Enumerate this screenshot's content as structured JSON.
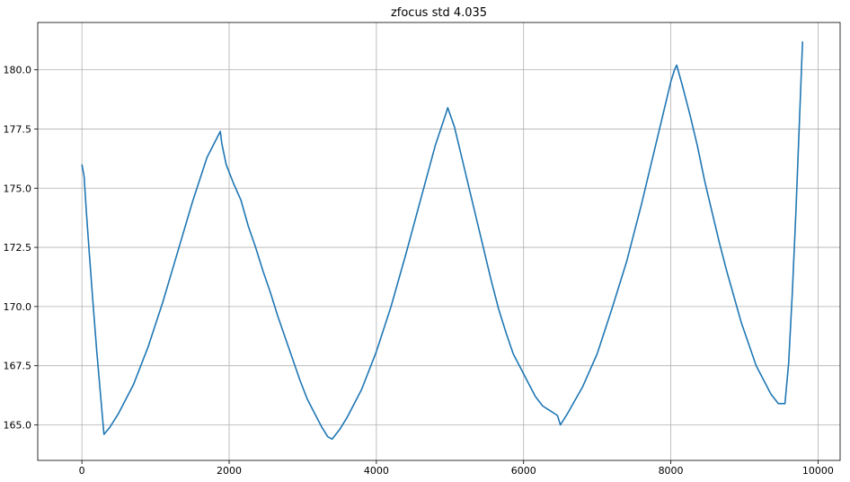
{
  "colors": {
    "background": "#ffffff",
    "axes": "#000000",
    "grid": "#b0b0b0",
    "series": "#1f77b4"
  },
  "chart_data": {
    "type": "line",
    "title": "zfocus std 4.035",
    "xlabel": "",
    "ylabel": "",
    "xlim": [
      -600,
      10300
    ],
    "ylim": [
      163.5,
      182.0
    ],
    "grid": true,
    "x_ticks": [
      0,
      2000,
      4000,
      6000,
      8000,
      10000
    ],
    "x_tick_labels": [
      "0",
      "2000",
      "4000",
      "6000",
      "8000",
      "10000"
    ],
    "y_ticks": [
      165.0,
      167.5,
      170.0,
      172.5,
      175.0,
      177.5,
      180.0
    ],
    "y_tick_labels": [
      "165.0",
      "167.5",
      "170.0",
      "172.5",
      "175.0",
      "177.5",
      "180.0"
    ],
    "series": [
      {
        "color": "#1f77b4",
        "x": [
          0,
          30,
          60,
          100,
          150,
          200,
          250,
          300,
          380,
          500,
          700,
          900,
          1100,
          1300,
          1500,
          1700,
          1880,
          1900,
          1960,
          2060,
          2160,
          2260,
          2360,
          2460,
          2560,
          2660,
          2760,
          2860,
          2960,
          3060,
          3160,
          3260,
          3340,
          3400,
          3500,
          3600,
          3800,
          4000,
          4200,
          4400,
          4600,
          4800,
          4950,
          4970,
          5060,
          5160,
          5260,
          5360,
          5460,
          5560,
          5660,
          5760,
          5860,
          5960,
          6060,
          6160,
          6260,
          6360,
          6460,
          6500,
          6600,
          6800,
          7000,
          7200,
          7400,
          7600,
          7800,
          8000,
          8050,
          8080,
          8160,
          8260,
          8360,
          8460,
          8560,
          8660,
          8760,
          8860,
          8960,
          9060,
          9160,
          9260,
          9360,
          9460,
          9550,
          9600,
          9650,
          9700,
          9750,
          9790
        ],
        "y": [
          176.0,
          175.5,
          174.0,
          172.3,
          170.2,
          168.2,
          166.4,
          164.6,
          164.9,
          165.5,
          166.7,
          168.3,
          170.2,
          172.3,
          174.4,
          176.3,
          177.4,
          176.9,
          176.0,
          175.2,
          174.5,
          173.4,
          172.5,
          171.5,
          170.6,
          169.6,
          168.7,
          167.8,
          166.9,
          166.1,
          165.5,
          164.9,
          164.5,
          164.4,
          164.8,
          165.3,
          166.5,
          168.1,
          170.0,
          172.2,
          174.5,
          176.8,
          178.2,
          178.4,
          177.6,
          176.3,
          175.0,
          173.7,
          172.4,
          171.1,
          169.9,
          168.9,
          168.0,
          167.4,
          166.8,
          166.2,
          165.8,
          165.6,
          165.4,
          165.0,
          165.5,
          166.6,
          168.0,
          169.9,
          171.9,
          174.3,
          176.9,
          179.5,
          180.0,
          180.2,
          179.3,
          178.1,
          176.8,
          175.3,
          174.0,
          172.7,
          171.5,
          170.4,
          169.3,
          168.4,
          167.5,
          166.9,
          166.3,
          165.9,
          165.9,
          167.6,
          170.5,
          174.0,
          178.0,
          181.2
        ]
      }
    ]
  }
}
